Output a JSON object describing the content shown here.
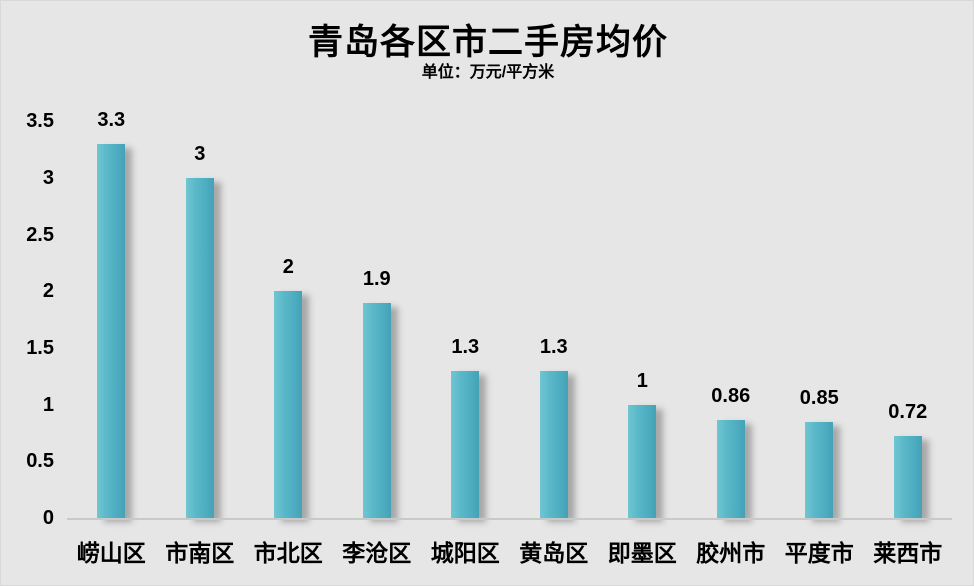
{
  "title": "青岛各区市二手房均价",
  "subtitle": "单位：万元/平方米",
  "chart_data": {
    "type": "bar",
    "title": "青岛各区市二手房均价",
    "subtitle": "单位：万元/平方米",
    "categories": [
      "崂山区",
      "市南区",
      "市北区",
      "李沧区",
      "城阳区",
      "黄岛区",
      "即墨区",
      "胶州市",
      "平度市",
      "莱西市"
    ],
    "values": [
      3.3,
      3,
      2,
      1.9,
      1.3,
      1.3,
      1,
      0.86,
      0.85,
      0.72
    ],
    "data_labels": [
      "3.3",
      "3",
      "2",
      "1.9",
      "1.3",
      "1.3",
      "1",
      "0.86",
      "0.85",
      "0.72"
    ],
    "xlabel": "",
    "ylabel": "",
    "ylim": [
      0,
      3.5
    ],
    "ytick_step": 0.5,
    "ytick_labels": [
      "3.5",
      "3",
      "2.5",
      "2",
      "1.5",
      "1",
      "0.5",
      "0"
    ],
    "grid": false,
    "legend_position": "none",
    "bar_color": "#53b2c4",
    "bar_gradient_left": "#70c6d3",
    "bar_gradient_right": "#45a2b6",
    "background_color": "#e6e6e6",
    "axis_line_color": "#c9c9c9",
    "text_color": "#000000"
  }
}
